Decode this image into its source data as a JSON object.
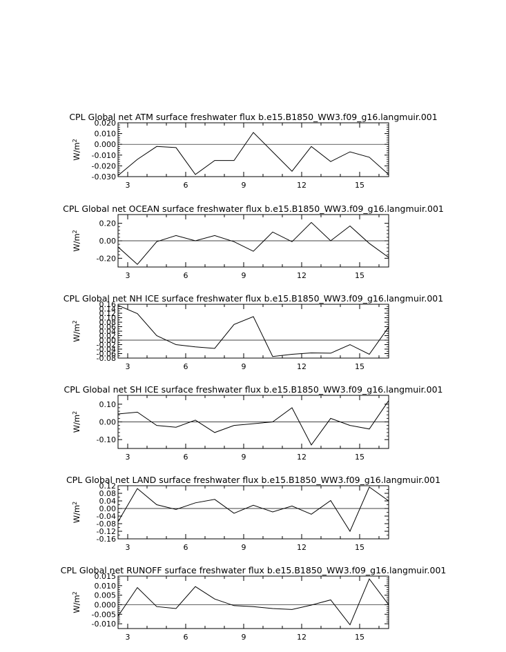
{
  "chart_data": [
    {
      "type": "line",
      "title": "CPL Global net ATM surface freshwater flux b.e15.B1850_WW3.f09_g16.langmuir.001",
      "xlabel": "",
      "ylabel": "W/m",
      "ylabel_sup": "2",
      "xlim": [
        2.5,
        16.5
      ],
      "ylim": [
        -0.03,
        0.02
      ],
      "x_ticks": [
        3,
        6,
        9,
        12,
        15
      ],
      "y_ticks": [
        -0.03,
        -0.02,
        -0.01,
        0.0,
        0.01,
        0.02
      ],
      "y_tick_labels": [
        "-0.030",
        "-0.020",
        "-0.010",
        "0.000",
        "0.010",
        "0.020"
      ],
      "x": [
        2.5,
        3.5,
        4.5,
        5.5,
        6.5,
        7.5,
        8.5,
        9.5,
        10.5,
        11.5,
        12.5,
        13.5,
        14.5,
        15.5,
        16.5
      ],
      "values": [
        -0.029,
        -0.014,
        -0.002,
        -0.003,
        -0.028,
        -0.015,
        -0.015,
        0.011,
        -0.007,
        -0.025,
        -0.002,
        -0.016,
        -0.007,
        -0.012,
        -0.028
      ]
    },
    {
      "type": "line",
      "title": "CPL Global net OCEAN surface freshwater flux b.e15.B1850_WW3.f09_g16.langmuir.001",
      "xlabel": "",
      "ylabel": "W/m",
      "ylabel_sup": "2",
      "xlim": [
        2.5,
        16.5
      ],
      "ylim": [
        -0.3,
        0.3
      ],
      "x_ticks": [
        3,
        6,
        9,
        12,
        15
      ],
      "y_ticks": [
        -0.2,
        0.0,
        0.2
      ],
      "y_tick_labels": [
        "-0.20",
        "0.00",
        "0.20"
      ],
      "x": [
        2.5,
        3.5,
        4.5,
        5.5,
        6.5,
        7.5,
        8.5,
        9.5,
        10.5,
        11.5,
        12.5,
        13.5,
        14.5,
        15.5,
        16.5
      ],
      "values": [
        -0.07,
        -0.27,
        -0.01,
        0.06,
        0.0,
        0.06,
        -0.01,
        -0.12,
        0.1,
        -0.01,
        0.21,
        0.0,
        0.17,
        -0.03,
        -0.19
      ]
    },
    {
      "type": "line",
      "title": "CPL Global net NH ICE surface freshwater flux b.e15.B1850_WW3.f09_g16.langmuir.001",
      "xlabel": "",
      "ylabel": "W/m",
      "ylabel_sup": "2",
      "xlim": [
        2.5,
        16.5
      ],
      "ylim": [
        -0.08,
        0.16
      ],
      "x_ticks": [
        3,
        6,
        9,
        12,
        15
      ],
      "y_ticks": [
        -0.08,
        -0.06,
        -0.04,
        -0.02,
        0.0,
        0.02,
        0.04,
        0.06,
        0.08,
        0.1,
        0.12,
        0.14,
        0.16
      ],
      "y_tick_labels": [
        "-0.08",
        "-0.06",
        "-0.04",
        "-0.02",
        "0.00",
        "0.02",
        "0.04",
        "0.06",
        "0.08",
        "0.10",
        "0.12",
        "0.14",
        "0.16"
      ],
      "x": [
        2.5,
        3.5,
        4.5,
        5.5,
        6.5,
        7.5,
        8.5,
        9.5,
        10.5,
        11.5,
        12.5,
        13.5,
        14.5,
        15.5,
        16.5
      ],
      "values": [
        0.155,
        0.118,
        0.02,
        -0.02,
        -0.03,
        -0.037,
        0.07,
        0.105,
        -0.073,
        -0.063,
        -0.057,
        -0.058,
        -0.02,
        -0.063,
        0.058
      ]
    },
    {
      "type": "line",
      "title": "CPL Global net SH ICE surface freshwater flux b.e15.B1850_WW3.f09_g16.langmuir.001",
      "xlabel": "",
      "ylabel": "W/m",
      "ylabel_sup": "2",
      "xlim": [
        2.5,
        16.5
      ],
      "ylim": [
        -0.15,
        0.15
      ],
      "x_ticks": [
        3,
        6,
        9,
        12,
        15
      ],
      "y_ticks": [
        -0.1,
        0.0,
        0.1
      ],
      "y_tick_labels": [
        "-0.10",
        "0.00",
        "0.10"
      ],
      "x": [
        2.5,
        3.5,
        4.5,
        5.5,
        6.5,
        7.5,
        8.5,
        9.5,
        10.5,
        11.5,
        12.5,
        13.5,
        14.5,
        15.5,
        16.5
      ],
      "values": [
        0.045,
        0.055,
        -0.02,
        -0.03,
        0.01,
        -0.06,
        -0.02,
        -0.01,
        0.0,
        0.08,
        -0.13,
        0.02,
        -0.02,
        -0.04,
        0.12
      ]
    },
    {
      "type": "line",
      "title": "CPL Global net LAND surface freshwater flux b.e15.B1850_WW3.f09_g16.langmuir.001",
      "xlabel": "",
      "ylabel": "W/m",
      "ylabel_sup": "2",
      "xlim": [
        2.5,
        16.5
      ],
      "ylim": [
        -0.16,
        0.12
      ],
      "x_ticks": [
        3,
        6,
        9,
        12,
        15
      ],
      "y_ticks": [
        -0.16,
        -0.12,
        -0.08,
        -0.04,
        0.0,
        0.04,
        0.08,
        0.12
      ],
      "y_tick_labels": [
        "-0.16",
        "-0.12",
        "-0.08",
        "-0.04",
        "0.00",
        "0.04",
        "0.08",
        "0.12"
      ],
      "x": [
        2.5,
        3.5,
        4.5,
        5.5,
        6.5,
        7.5,
        8.5,
        9.5,
        10.5,
        11.5,
        12.5,
        13.5,
        14.5,
        15.5,
        16.5
      ],
      "values": [
        -0.07,
        0.105,
        0.02,
        -0.005,
        0.03,
        0.048,
        -0.025,
        0.017,
        -0.018,
        0.013,
        -0.03,
        0.042,
        -0.12,
        0.113,
        0.04
      ]
    },
    {
      "type": "line",
      "title": "CPL Global net RUNOFF surface freshwater flux b.e15.B1850_WW3.f09_g16.langmuir.001",
      "xlabel": "",
      "ylabel": "W/m",
      "ylabel_sup": "2",
      "xlim": [
        2.5,
        16.5
      ],
      "ylim": [
        -0.0125,
        0.015
      ],
      "x_ticks": [
        3,
        6,
        9,
        12,
        15
      ],
      "y_ticks": [
        -0.01,
        -0.005,
        0.0,
        0.005,
        0.01,
        0.015
      ],
      "y_tick_labels": [
        "-0.010",
        "-0.005",
        "0.000",
        "0.005",
        "0.010",
        "0.015"
      ],
      "x": [
        2.5,
        3.5,
        4.5,
        5.5,
        6.5,
        7.5,
        8.5,
        9.5,
        10.5,
        11.5,
        12.5,
        13.5,
        14.5,
        15.5,
        16.5
      ],
      "values": [
        -0.006,
        0.009,
        -0.001,
        -0.002,
        0.0095,
        0.003,
        -0.0005,
        -0.001,
        -0.002,
        -0.0025,
        -0.0002,
        0.0025,
        -0.0105,
        0.0135,
        0.0
      ]
    }
  ]
}
